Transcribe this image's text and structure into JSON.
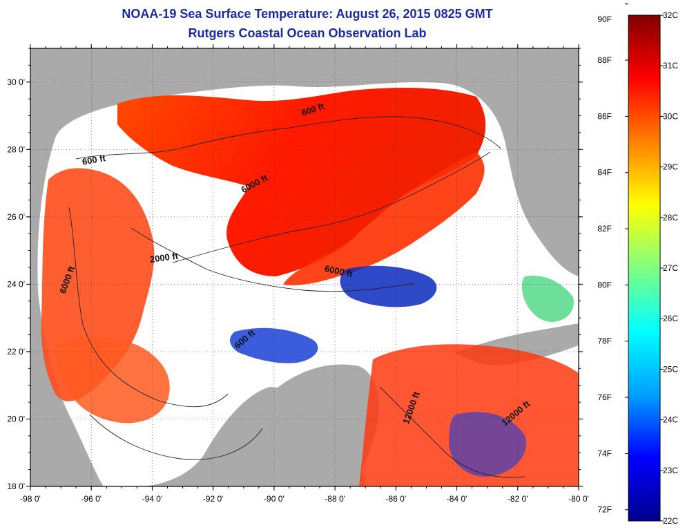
{
  "title": {
    "line1": "NOAA-19 Sea Surface Temperature:  August 26, 2015 0825 GMT",
    "line2": "Rutgers Coastal Ocean Observation Lab"
  },
  "map": {
    "lon_ticks": [
      {
        "value": -98,
        "label": "-98 0'"
      },
      {
        "value": -96,
        "label": "-96 0'"
      },
      {
        "value": -94,
        "label": "-94 0'"
      },
      {
        "value": -92,
        "label": "-92 0'"
      },
      {
        "value": -90,
        "label": "-90 0'"
      },
      {
        "value": -88,
        "label": "-88 0'"
      },
      {
        "value": -86,
        "label": "-86 0'"
      },
      {
        "value": -84,
        "label": "-84 0'"
      },
      {
        "value": -82,
        "label": "-82 0'"
      },
      {
        "value": -80,
        "label": "-80 0'"
      }
    ],
    "lat_ticks": [
      {
        "value": 18,
        "label": "18 0'"
      },
      {
        "value": 20,
        "label": "20 0'"
      },
      {
        "value": 22,
        "label": "22 0'"
      },
      {
        "value": 24,
        "label": "24 0'"
      },
      {
        "value": 26,
        "label": "26 0'"
      },
      {
        "value": 28,
        "label": "28 0'"
      },
      {
        "value": 30,
        "label": "30 0'"
      }
    ],
    "lon_range": [
      -98,
      -80
    ],
    "lat_range": [
      18,
      31
    ],
    "contour_labels": [
      {
        "text": "600 ft",
        "lon": -88.7,
        "lat": 29.1,
        "rotate": -18
      },
      {
        "text": "600 ft",
        "lon": -95.9,
        "lat": 27.6,
        "rotate": -10
      },
      {
        "text": "6000 ft",
        "lon": -90.6,
        "lat": 26.9,
        "rotate": -28
      },
      {
        "text": "2000 ft",
        "lon": -93.6,
        "lat": 24.7,
        "rotate": -8
      },
      {
        "text": "6000 ft",
        "lon": -96.7,
        "lat": 24.1,
        "rotate": -70
      },
      {
        "text": "6000 ft",
        "lon": -87.9,
        "lat": 24.3,
        "rotate": 12
      },
      {
        "text": "600 ft",
        "lon": -90.9,
        "lat": 22.3,
        "rotate": -40
      },
      {
        "text": "12000 ft",
        "lon": -85.4,
        "lat": 20.3,
        "rotate": -70
      },
      {
        "text": "12000 ft",
        "lon": -82.0,
        "lat": 20.1,
        "rotate": -40
      }
    ],
    "colors": {
      "land": "#aaaaaa",
      "cloud": "#ffffff",
      "frame": "#000000"
    }
  },
  "colorbar": {
    "f_labels": [
      {
        "value": 72,
        "label": "72F"
      },
      {
        "value": 74,
        "label": "74F"
      },
      {
        "value": 76,
        "label": "76F"
      },
      {
        "value": 78,
        "label": "78F"
      },
      {
        "value": 80,
        "label": "80F"
      },
      {
        "value": 82,
        "label": "82F"
      },
      {
        "value": 84,
        "label": "84F"
      },
      {
        "value": 86,
        "label": "86F"
      },
      {
        "value": 88,
        "label": "88F"
      },
      {
        "value": 90,
        "label": "90F"
      }
    ],
    "c_labels": [
      {
        "value": 22,
        "label": "22C"
      },
      {
        "value": 23,
        "label": "23C"
      },
      {
        "value": 24,
        "label": "24C"
      },
      {
        "value": 25,
        "label": "25C"
      },
      {
        "value": 26,
        "label": "26C"
      },
      {
        "value": 27,
        "label": "27C"
      },
      {
        "value": 28,
        "label": "28C"
      },
      {
        "value": 29,
        "label": "29C"
      },
      {
        "value": 30,
        "label": "30C"
      },
      {
        "value": 31,
        "label": "31C"
      },
      {
        "value": 32,
        "label": "32C"
      }
    ],
    "range_c": [
      22,
      32
    ],
    "gradient": [
      "#00008f",
      "#0000ff",
      "#00a0ff",
      "#00ffff",
      "#80ff80",
      "#ffff00",
      "#ff8000",
      "#ff0000",
      "#800000"
    ]
  }
}
